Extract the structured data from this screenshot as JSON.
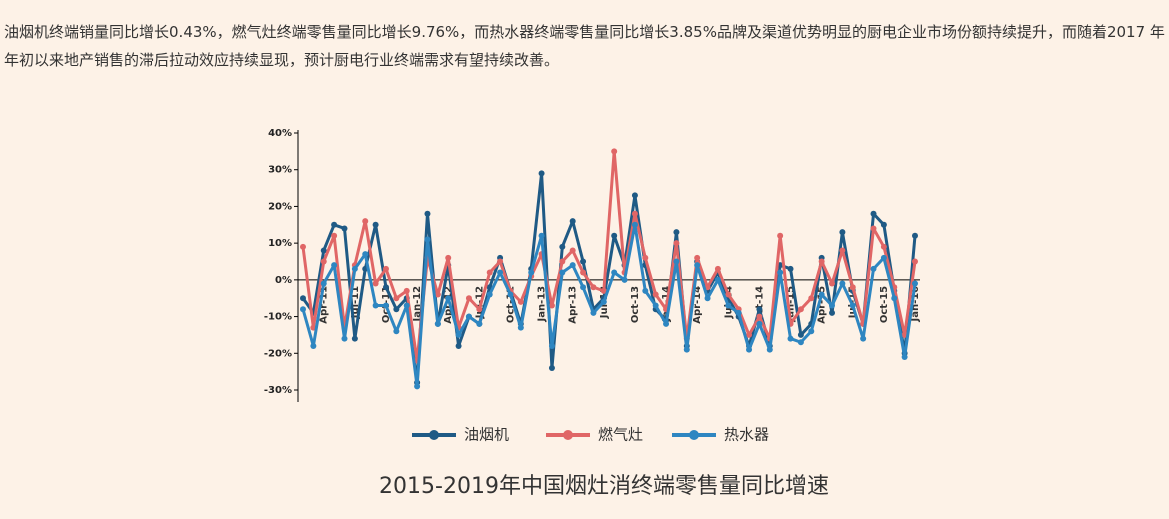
{
  "paragraph": "油烟机终端销量同比增长0.43%，燃气灶终端零售量同比增长9.76%，而热水器终端零售量同比增长3.85%品牌及渠道优势明显的厨电企业市场份额持续提升，而随着2017 年年初以来地产销售的滞后拉动效应持续显现，预计厨电行业终端需求有望持续改善。",
  "chart_data": {
    "type": "line",
    "caption": "2015-2019年中国烟灶消终端零售量同比增速",
    "categories": [
      null,
      null,
      "Apr-11",
      null,
      null,
      "Jul-11",
      null,
      null,
      "Oct-11",
      null,
      null,
      "Jan-12",
      null,
      null,
      "Apr-12",
      null,
      null,
      "Jul-12",
      null,
      null,
      "Oct-12",
      null,
      null,
      "Jan-13",
      null,
      null,
      "Apr-13",
      null,
      null,
      "Jul-13",
      null,
      null,
      "Oct-13",
      null,
      null,
      "Jan-14",
      null,
      null,
      "Apr-14",
      null,
      null,
      "Jul-14",
      null,
      null,
      "Oct-14",
      null,
      null,
      "Jan-15",
      null,
      null,
      "Apr-15",
      null,
      null,
      "Jul-15",
      null,
      null,
      "Oct-15",
      null,
      null,
      "Jan-16"
    ],
    "series": [
      {
        "name": "油烟机",
        "color": "#1f5a85",
        "values": [
          -5,
          -9,
          8,
          15,
          14,
          -16,
          3,
          15,
          -2,
          -8,
          -5,
          -28,
          18,
          -12,
          4,
          -18,
          -10,
          -12,
          -2,
          6,
          -3,
          -12,
          3,
          29,
          -24,
          9,
          16,
          5,
          -8,
          -5,
          12,
          4,
          23,
          4,
          -8,
          -11,
          13,
          -18,
          5,
          -3,
          2,
          -5,
          -10,
          -18,
          -8,
          -18,
          4,
          3,
          -15,
          -12,
          6,
          -9,
          13,
          -3,
          -12,
          18,
          15,
          -3,
          -20,
          12
        ]
      },
      {
        "name": "燃气灶",
        "color": "#e06666",
        "values": [
          9,
          -13,
          5,
          12,
          -13,
          4,
          16,
          -1,
          3,
          -5,
          -3,
          -22,
          6,
          -4,
          6,
          -13,
          -5,
          -8,
          2,
          5,
          -3,
          -6,
          1,
          7,
          -7,
          5,
          8,
          2,
          -2,
          -3,
          35,
          2,
          18,
          6,
          -4,
          -8,
          10,
          -16,
          6,
          -2,
          3,
          -4,
          -8,
          -15,
          -10,
          -16,
          12,
          -12,
          -8,
          -5,
          5,
          -1,
          8,
          -2,
          -12,
          14,
          9,
          -2,
          -15,
          5
        ]
      },
      {
        "name": "热水器",
        "color": "#2e86c1",
        "values": [
          -8,
          -18,
          -1,
          4,
          -16,
          3,
          7,
          -7,
          -7,
          -14,
          -7,
          -29,
          11,
          -12,
          -5,
          -15,
          -10,
          -12,
          -4,
          2,
          -4,
          -13,
          2,
          12,
          -18,
          2,
          4,
          -2,
          -9,
          -6,
          2,
          0,
          15,
          -3,
          -7,
          -12,
          5,
          -19,
          4,
          -5,
          0,
          -7,
          -9,
          -19,
          -12,
          -19,
          2,
          -16,
          -17,
          -14,
          -4,
          -7,
          -1,
          -7,
          -16,
          3,
          6,
          -5,
          -21,
          -1
        ]
      }
    ],
    "ylim": [
      -30,
      40
    ],
    "yticks": [
      {
        "value": 40,
        "label": "40%"
      },
      {
        "value": 30,
        "label": "30%"
      },
      {
        "value": 20,
        "label": "20%"
      },
      {
        "value": 10,
        "label": "10%"
      },
      {
        "value": 0,
        "label": "0%"
      },
      {
        "value": -10,
        "label": "-10%"
      },
      {
        "value": -20,
        "label": "-20%"
      },
      {
        "value": -30,
        "label": "-30%"
      }
    ]
  }
}
